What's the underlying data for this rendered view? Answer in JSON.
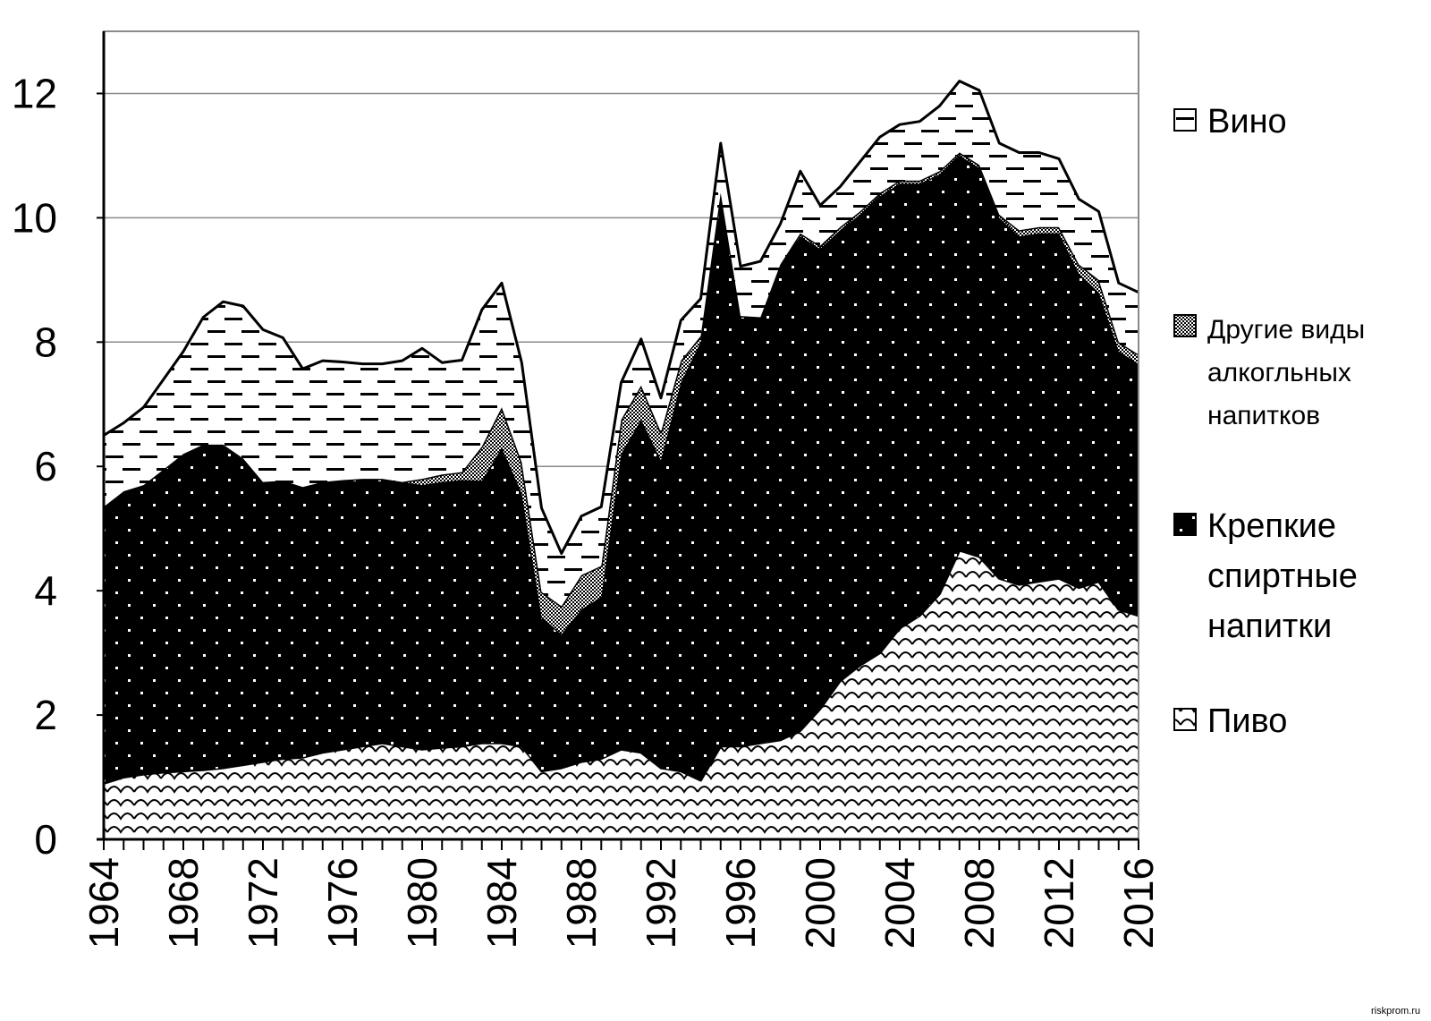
{
  "chart_data": {
    "type": "area",
    "stacked": true,
    "title": "",
    "xlabel": "",
    "ylabel": "",
    "xlim": [
      1964,
      2016
    ],
    "ylim": [
      0,
      13
    ],
    "y_ticks": [
      "0",
      "2",
      "4",
      "6",
      "8",
      "10",
      "12"
    ],
    "x_ticks": [
      "1964",
      "1968",
      "1972",
      "1976",
      "1980",
      "1984",
      "1988",
      "1992",
      "1996",
      "2000",
      "2004",
      "2008",
      "2012",
      "2016"
    ],
    "grid": "horizontal",
    "legend_position": "right",
    "x": [
      1964,
      1965,
      1966,
      1967,
      1968,
      1969,
      1970,
      1971,
      1972,
      1973,
      1974,
      1975,
      1976,
      1977,
      1978,
      1979,
      1980,
      1981,
      1982,
      1983,
      1984,
      1985,
      1986,
      1987,
      1988,
      1989,
      1990,
      1991,
      1992,
      1993,
      1994,
      1995,
      1996,
      1997,
      1998,
      1999,
      2000,
      2001,
      2002,
      2003,
      2004,
      2005,
      2006,
      2007,
      2008,
      2009,
      2010,
      2011,
      2012,
      2013,
      2014,
      2015,
      2016
    ],
    "series": [
      {
        "name": "Пиво",
        "pattern": "scale",
        "values": [
          0.9,
          1.0,
          1.05,
          1.08,
          1.1,
          1.12,
          1.15,
          1.2,
          1.25,
          1.3,
          1.32,
          1.4,
          1.45,
          1.5,
          1.55,
          1.5,
          1.45,
          1.48,
          1.5,
          1.55,
          1.55,
          1.5,
          1.1,
          1.15,
          1.25,
          1.3,
          1.45,
          1.4,
          1.15,
          1.1,
          0.95,
          1.5,
          1.5,
          1.55,
          1.6,
          1.75,
          2.1,
          2.55,
          2.8,
          3.0,
          3.4,
          3.6,
          3.95,
          4.65,
          4.55,
          4.2,
          4.1,
          4.15,
          4.2,
          4.05,
          4.15,
          3.7,
          3.6
        ]
      },
      {
        "name": "Крепкие спиртные напитки",
        "pattern": "dots",
        "values": [
          4.45,
          4.6,
          4.65,
          4.87,
          5.1,
          5.23,
          5.2,
          4.93,
          4.5,
          4.47,
          4.35,
          4.35,
          4.33,
          4.3,
          4.25,
          4.25,
          4.25,
          4.27,
          4.28,
          4.22,
          4.75,
          4.07,
          2.48,
          2.15,
          2.45,
          2.6,
          4.75,
          5.35,
          4.95,
          6.25,
          7.05,
          8.9,
          6.92,
          6.85,
          7.65,
          7.95,
          7.4,
          7.25,
          7.25,
          7.35,
          7.15,
          6.95,
          6.75,
          6.35,
          6.25,
          5.8,
          5.6,
          5.6,
          5.55,
          5.05,
          4.65,
          4.15,
          4.05
        ]
      },
      {
        "name": "Другие виды алкогльных напитков",
        "pattern": "checker",
        "values": [
          0,
          0,
          0,
          0,
          0,
          0,
          0,
          0,
          0,
          0,
          0,
          0,
          0,
          0,
          0,
          0,
          0.1,
          0.12,
          0.13,
          0.55,
          0.65,
          0.5,
          0.4,
          0.45,
          0.55,
          0.5,
          0.55,
          0.55,
          0.45,
          0.35,
          0.1,
          0,
          0,
          0,
          0,
          0.05,
          0.05,
          0.05,
          0.05,
          0.05,
          0.05,
          0.05,
          0.05,
          0.05,
          0.05,
          0.05,
          0.1,
          0.1,
          0.1,
          0.15,
          0.2,
          0.15,
          0.15
        ]
      },
      {
        "name": "Вино",
        "pattern": "dashes",
        "values": [
          1.15,
          1.1,
          1.25,
          1.45,
          1.65,
          2.05,
          2.3,
          2.45,
          2.45,
          2.3,
          1.9,
          1.95,
          1.9,
          1.85,
          1.85,
          1.95,
          2.1,
          1.8,
          1.8,
          2.2,
          2.0,
          1.6,
          1.35,
          0.85,
          0.95,
          0.95,
          0.6,
          0.75,
          0.55,
          0.65,
          0.6,
          0.8,
          0.8,
          0.9,
          0.65,
          1.0,
          0.65,
          0.65,
          0.8,
          0.9,
          0.9,
          0.95,
          1.05,
          1.15,
          1.2,
          1.15,
          1.25,
          1.2,
          1.1,
          1.05,
          1.1,
          0.95,
          1.0
        ]
      }
    ]
  },
  "legend": [
    {
      "lines": [
        "Вино"
      ],
      "pattern": "dashes"
    },
    {
      "lines": [
        "Другие виды",
        "алкогльных",
        "напитков"
      ],
      "pattern": "checker"
    },
    {
      "lines": [
        "Крепкие",
        "спиртные",
        "напитки"
      ],
      "pattern": "dots"
    },
    {
      "lines": [
        "Пиво"
      ],
      "pattern": "scale"
    }
  ],
  "source_text": "riskprom.ru"
}
